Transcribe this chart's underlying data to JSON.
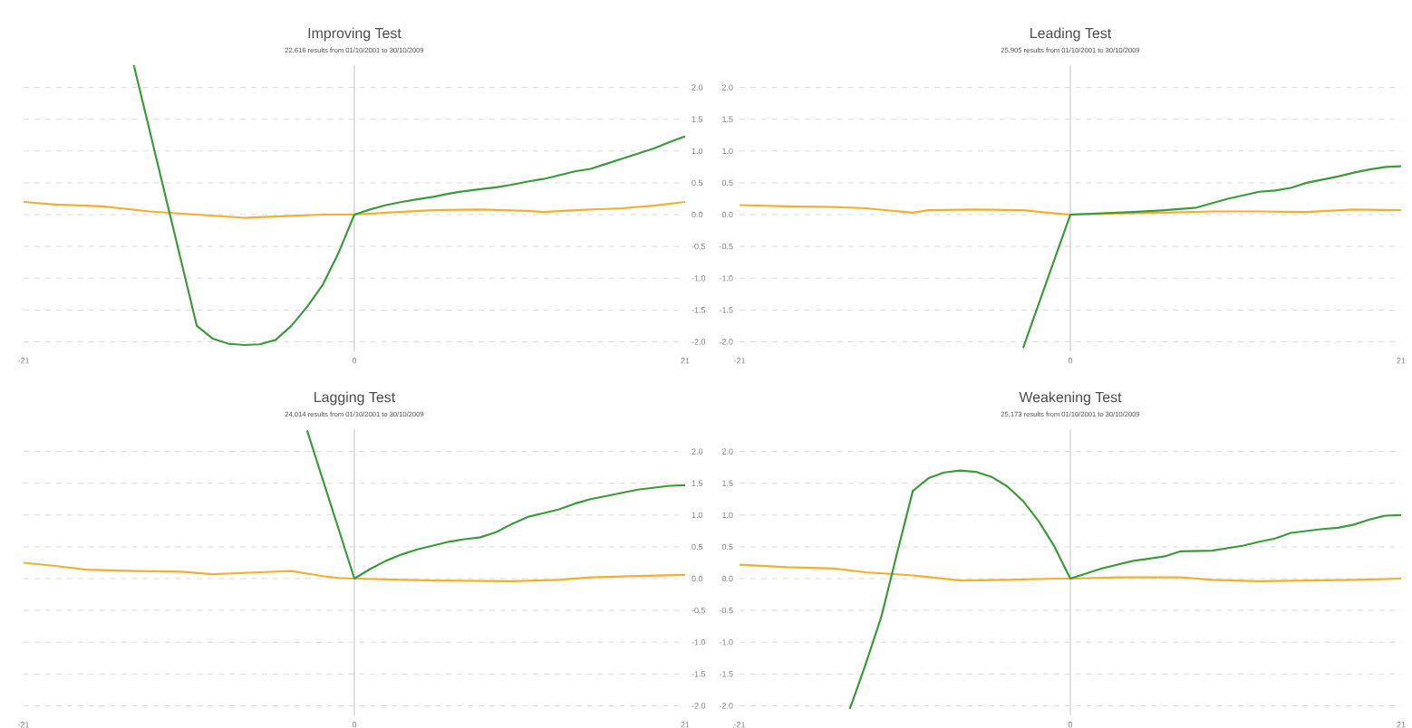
{
  "chart_data": [
    {
      "type": "line",
      "title": "Improving Test",
      "subtitle": "22,616 results from 01/10/2001 to 30/10/2009",
      "xlim": [
        -21,
        21
      ],
      "xticks": [
        -21,
        0,
        21
      ],
      "ylim": [
        -2.15,
        2.35
      ],
      "yticks": [
        {
          "value": -2,
          "label": "-2.0"
        },
        {
          "value": -1.5,
          "label": "-1.5"
        },
        {
          "value": -1,
          "label": "-1.0"
        },
        {
          "value": -0.5,
          "label": "-0.5"
        },
        {
          "value": 0,
          "label": "0.0"
        },
        {
          "value": 0.5,
          "label": "0.5"
        },
        {
          "value": 1,
          "label": "1.0"
        },
        {
          "value": 1.5,
          "label": "1.5"
        },
        {
          "value": 2,
          "label": "2.0"
        }
      ],
      "grid": "y",
      "ref_lines": [
        {
          "axis": "x",
          "value": 0,
          "color": "#cccccc"
        }
      ],
      "series": [
        {
          "color": "#f0b030",
          "x": [
            -21,
            -19,
            -16,
            -13,
            -10,
            -7,
            -4,
            -2,
            0,
            2,
            5,
            8,
            11,
            12,
            14,
            17,
            19,
            21
          ],
          "values": [
            0.2,
            0.16,
            0.13,
            0.05,
            0.0,
            -0.05,
            -0.02,
            0.0,
            0.0,
            0.03,
            0.07,
            0.08,
            0.06,
            0.04,
            0.07,
            0.1,
            0.14,
            0.2
          ]
        },
        {
          "color": "#3c9a3c",
          "x": [
            -14,
            -10,
            -9,
            -8,
            -7,
            -6,
            -5,
            -4,
            -3,
            -2,
            -1,
            0,
            1,
            2,
            3,
            4,
            5,
            6,
            7,
            8,
            9,
            10,
            11,
            12,
            13,
            14,
            15,
            16,
            17,
            18,
            19,
            20,
            21
          ],
          "values": [
            2.35,
            -1.75,
            -1.95,
            -2.03,
            -2.05,
            -2.04,
            -1.97,
            -1.75,
            -1.45,
            -1.1,
            -0.6,
            0.0,
            0.08,
            0.15,
            0.2,
            0.24,
            0.28,
            0.33,
            0.37,
            0.4,
            0.43,
            0.47,
            0.52,
            0.56,
            0.62,
            0.68,
            0.72,
            0.8,
            0.88,
            0.96,
            1.04,
            1.14,
            1.23
          ]
        }
      ]
    },
    {
      "type": "line",
      "title": "Leading Test",
      "subtitle": "25,905 results from 01/10/2001 to 30/10/2009",
      "xlim": [
        -21,
        21
      ],
      "xticks": [
        -21,
        0,
        21
      ],
      "ylim": [
        -2.15,
        2.35
      ],
      "yticks": [
        {
          "value": -2,
          "label": "-2.0"
        },
        {
          "value": -1.5,
          "label": "-1.5"
        },
        {
          "value": -1,
          "label": "-1.0"
        },
        {
          "value": -0.5,
          "label": "-0.5"
        },
        {
          "value": 0,
          "label": "0.0"
        },
        {
          "value": 0.5,
          "label": "0.5"
        },
        {
          "value": 1,
          "label": "1.0"
        },
        {
          "value": 1.5,
          "label": "1.5"
        },
        {
          "value": 2,
          "label": "2.0"
        }
      ],
      "grid": "y",
      "ref_lines": [
        {
          "axis": "x",
          "value": 0,
          "color": "#cccccc"
        }
      ],
      "series": [
        {
          "color": "#f0b030",
          "x": [
            -21,
            -18,
            -15,
            -13,
            -10,
            -9,
            -6,
            -3,
            -1,
            0,
            3,
            6,
            9,
            12,
            15,
            18,
            21
          ],
          "values": [
            0.15,
            0.13,
            0.12,
            0.1,
            0.03,
            0.07,
            0.08,
            0.07,
            0.02,
            0.0,
            0.02,
            0.03,
            0.05,
            0.05,
            0.04,
            0.08,
            0.07
          ]
        },
        {
          "color": "#3c9a3c",
          "x": [
            -3,
            -2,
            -1,
            0,
            2,
            4,
            6,
            8,
            10,
            12,
            13,
            14,
            15,
            16,
            17,
            18,
            19,
            20,
            21
          ],
          "values": [
            -2.1,
            -1.4,
            -0.7,
            0.0,
            0.02,
            0.04,
            0.07,
            0.11,
            0.25,
            0.36,
            0.38,
            0.42,
            0.5,
            0.55,
            0.6,
            0.66,
            0.71,
            0.75,
            0.76
          ]
        }
      ]
    },
    {
      "type": "line",
      "title": "Lagging Test",
      "subtitle": "24,014 results from 01/10/2001 to 30/10/2009",
      "xlim": [
        -21,
        21
      ],
      "xticks": [
        -21,
        0,
        21
      ],
      "ylim": [
        -2.15,
        2.35
      ],
      "yticks": [
        {
          "value": -2,
          "label": "-2.0"
        },
        {
          "value": -1.5,
          "label": "-1.5"
        },
        {
          "value": -1,
          "label": "-1.0"
        },
        {
          "value": -0.5,
          "label": "-0.5"
        },
        {
          "value": 0,
          "label": "0.0"
        },
        {
          "value": 0.5,
          "label": "0.5"
        },
        {
          "value": 1,
          "label": "1.0"
        },
        {
          "value": 1.5,
          "label": "1.5"
        },
        {
          "value": 2,
          "label": "2.0"
        }
      ],
      "grid": "y",
      "ref_lines": [
        {
          "axis": "x",
          "value": 0,
          "color": "#cccccc"
        }
      ],
      "series": [
        {
          "color": "#f0b030",
          "x": [
            -21,
            -19,
            -17,
            -14,
            -11,
            -9,
            -6,
            -4,
            -2,
            -1,
            0,
            5,
            10,
            13,
            15,
            18,
            21
          ],
          "values": [
            0.25,
            0.2,
            0.14,
            0.12,
            0.11,
            0.07,
            0.1,
            0.12,
            0.04,
            0.01,
            0.0,
            -0.03,
            -0.04,
            -0.02,
            0.02,
            0.04,
            0.06
          ]
        },
        {
          "color": "#3c9a3c",
          "x": [
            -3,
            -2,
            -1,
            0,
            1,
            2,
            3,
            4,
            5,
            6,
            7,
            8,
            9,
            10,
            11,
            12,
            13,
            14,
            15,
            16,
            17,
            18,
            19,
            20,
            21
          ],
          "values": [
            2.33,
            1.55,
            0.78,
            0.0,
            0.15,
            0.28,
            0.38,
            0.46,
            0.52,
            0.58,
            0.62,
            0.65,
            0.73,
            0.86,
            0.97,
            1.03,
            1.09,
            1.18,
            1.25,
            1.3,
            1.35,
            1.4,
            1.43,
            1.46,
            1.47
          ]
        }
      ]
    },
    {
      "type": "line",
      "title": "Weakening Test",
      "subtitle": "25,173 results from 01/10/2001 to 30/10/2009",
      "xlim": [
        -21,
        21
      ],
      "xticks": [
        -21,
        0,
        21
      ],
      "ylim": [
        -2.15,
        2.35
      ],
      "yticks": [
        {
          "value": -2,
          "label": "-2.0"
        },
        {
          "value": -1.5,
          "label": "-1.5"
        },
        {
          "value": -1,
          "label": "-1.0"
        },
        {
          "value": -0.5,
          "label": "-0.5"
        },
        {
          "value": 0,
          "label": "0.0"
        },
        {
          "value": 0.5,
          "label": "0.5"
        },
        {
          "value": 1,
          "label": "1.0"
        },
        {
          "value": 1.5,
          "label": "1.5"
        },
        {
          "value": 2,
          "label": "2.0"
        }
      ],
      "grid": "y",
      "ref_lines": [
        {
          "axis": "x",
          "value": 0,
          "color": "#cccccc"
        }
      ],
      "series": [
        {
          "color": "#f0b030",
          "x": [
            -21,
            -18,
            -15,
            -13,
            -10,
            -7,
            -4,
            -1,
            0,
            3,
            7,
            9,
            12,
            15,
            18,
            21
          ],
          "values": [
            0.22,
            0.18,
            0.16,
            0.1,
            0.05,
            -0.03,
            -0.02,
            0.0,
            0.0,
            0.02,
            0.02,
            -0.02,
            -0.04,
            -0.03,
            -0.02,
            0.0
          ]
        },
        {
          "color": "#3c9a3c",
          "x": [
            -14,
            -13,
            -12,
            -11,
            -10,
            -9,
            -8,
            -7,
            -6,
            -5,
            -4,
            -3,
            -2,
            -1,
            0,
            2,
            4,
            6,
            7,
            9,
            11,
            12,
            13,
            14,
            15,
            16,
            17,
            18,
            19,
            20,
            21
          ],
          "values": [
            -2.05,
            -1.35,
            -0.6,
            0.4,
            1.38,
            1.58,
            1.67,
            1.7,
            1.68,
            1.6,
            1.45,
            1.22,
            0.9,
            0.5,
            0.0,
            0.16,
            0.28,
            0.35,
            0.43,
            0.44,
            0.52,
            0.58,
            0.63,
            0.72,
            0.75,
            0.78,
            0.8,
            0.85,
            0.93,
            0.99,
            1.0
          ]
        }
      ]
    }
  ]
}
